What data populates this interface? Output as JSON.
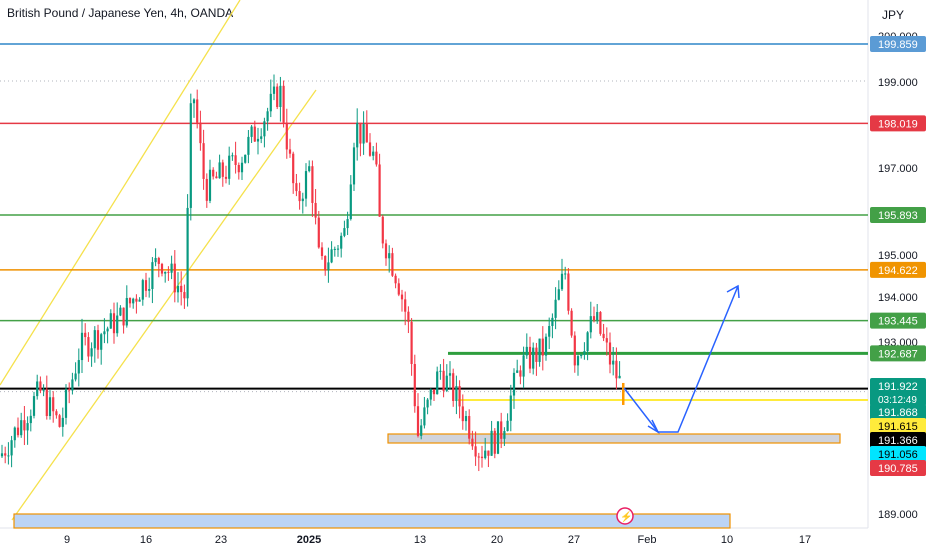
{
  "header": {
    "title": "British Pound / Japanese Yen, 4h, OANDA",
    "currency": "JPY"
  },
  "chart_data": {
    "type": "candlestick",
    "ylim": [
      188.7,
      200.05
    ],
    "x_ticks": [
      "9",
      "16",
      "23",
      "2025",
      "6",
      "13",
      "20",
      "27",
      "Feb",
      "10",
      "17"
    ],
    "y_ticks": [
      "200.000",
      "199.000",
      "197.000",
      "196.000",
      "195.000",
      "194.000",
      "193.000",
      "189.000"
    ],
    "level_lines": [
      {
        "price": 199.859,
        "label": "199.859",
        "color": "#2f86c8",
        "badge": "#5b9bd5"
      },
      {
        "price": 198.019,
        "label": "198.019",
        "color": "#e53945",
        "badge": "#e53945"
      },
      {
        "price": 195.893,
        "label": "195.893",
        "color": "#43a047",
        "badge": "#43a047"
      },
      {
        "price": 194.622,
        "label": "194.622",
        "color": "#ef9100",
        "badge": "#f09400"
      },
      {
        "price": 193.445,
        "label": "193.445",
        "color": "#43a047",
        "badge": "#43a047"
      },
      {
        "price": 192.687,
        "label": "192.687",
        "color": "#2e9e3e",
        "badge": "#43a047"
      },
      {
        "price": 191.868,
        "label": "191.868",
        "color": "#000000",
        "badge": "#222222"
      }
    ],
    "price_badges": [
      {
        "label": "191.922",
        "sub": "03:12:49",
        "color": "#089981"
      },
      {
        "label": "191.868",
        "color": "#089981"
      },
      {
        "label": "191.615",
        "color": "#ffeb3b",
        "text": "#000000"
      },
      {
        "label": "191.366",
        "color": "#000000"
      },
      {
        "label": "191.056",
        "color": "#00e5ff",
        "text": "#000000"
      },
      {
        "label": "190.785",
        "color": "#e53945"
      }
    ],
    "last_price": 191.922,
    "countdown": "03:12:49",
    "candle_colors": {
      "up": "#089981",
      "down": "#f23645"
    }
  }
}
